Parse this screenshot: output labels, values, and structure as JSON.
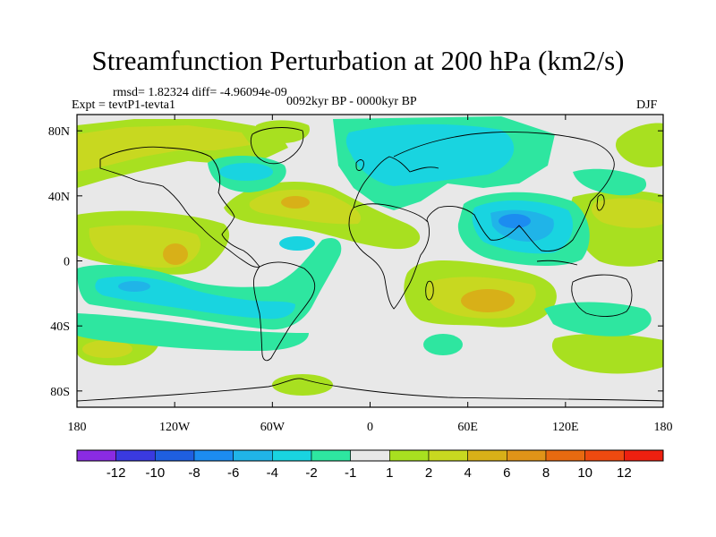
{
  "header": {
    "title": "Streamfunction Perturbation at 200 hPa (km2/s)",
    "rmsd_line": "rmsd= 1.82324  diff= -4.96094e-09",
    "expt_line": "Expt = tevtP1-tevta1",
    "period_line": "0092kyr BP - 0000kyr BP",
    "season": "DJF"
  },
  "map": {
    "projection": "cylindrical-equidistant",
    "lon_range": [
      -180,
      180
    ],
    "lat_range": [
      -90,
      90
    ],
    "background_color": "#e8e8e8",
    "x_ticks": [
      {
        "value": -180,
        "label": "180"
      },
      {
        "value": -120,
        "label": "120W"
      },
      {
        "value": -60,
        "label": "60W"
      },
      {
        "value": 0,
        "label": "0"
      },
      {
        "value": 60,
        "label": "60E"
      },
      {
        "value": 120,
        "label": "120E"
      },
      {
        "value": 180,
        "label": "180"
      }
    ],
    "y_ticks": [
      {
        "value": 80,
        "label": "80N"
      },
      {
        "value": 40,
        "label": "40N"
      },
      {
        "value": 0,
        "label": "0"
      },
      {
        "value": -40,
        "label": "40S"
      },
      {
        "value": -80,
        "label": "80S"
      }
    ]
  },
  "colorbar": {
    "colors": [
      "#8a2be2",
      "#3a3ae0",
      "#1f5fe0",
      "#1c8cf0",
      "#20b4e8",
      "#19d4e0",
      "#2ee6a0",
      "#e8e8e8",
      "#a8e020",
      "#c8d820",
      "#d8b018",
      "#e09418",
      "#e86a10",
      "#ee4a10",
      "#ee2010"
    ],
    "labels": [
      "-12",
      "-10",
      "-8",
      "-6",
      "-4",
      "-2",
      "-1",
      "1",
      "2",
      "4",
      "6",
      "8",
      "10",
      "12"
    ]
  }
}
